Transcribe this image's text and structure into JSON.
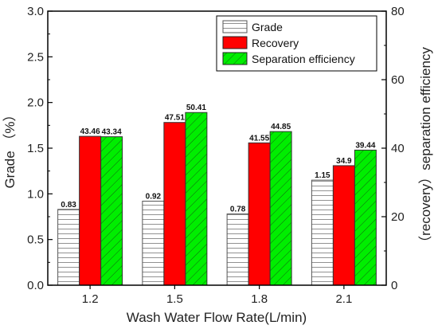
{
  "chart_data": {
    "type": "bar",
    "categories": [
      "1.2",
      "1.5",
      "1.8",
      "2.1"
    ],
    "xlabel": "Wash Water Flow Rate(L/min)",
    "ylabel_left": "Grade （%）",
    "ylabel_right": "（recovery）separation efficiency",
    "ylim_left": [
      0,
      3.0
    ],
    "ylim_right": [
      0,
      80
    ],
    "left_ticks": [
      "0.0",
      "0.5",
      "1.0",
      "1.5",
      "2.0",
      "2.5",
      "3.0"
    ],
    "right_ticks": [
      "0",
      "20",
      "40",
      "60",
      "80"
    ],
    "grid": false,
    "legend_position": "top-right",
    "series": [
      {
        "name": "Grade",
        "axis": "left",
        "values": [
          0.83,
          0.92,
          0.78,
          1.15
        ],
        "labels": [
          "0.83",
          "0.92",
          "0.78",
          "1.15"
        ],
        "fill": "#ffffff",
        "pattern": "horizontal-lines"
      },
      {
        "name": "Recovery",
        "axis": "right",
        "values": [
          43.46,
          47.51,
          41.55,
          34.9
        ],
        "labels": [
          "43.46",
          "47.51",
          "41.55",
          "34.9"
        ],
        "fill": "#ff0000",
        "pattern": "solid"
      },
      {
        "name": "Separation efficiency",
        "axis": "right",
        "values": [
          43.34,
          50.41,
          44.85,
          39.44
        ],
        "labels": [
          "43.34",
          "50.41",
          "44.85",
          "39.44"
        ],
        "fill": "#00ee00",
        "pattern": "diagonal-lines"
      }
    ]
  }
}
